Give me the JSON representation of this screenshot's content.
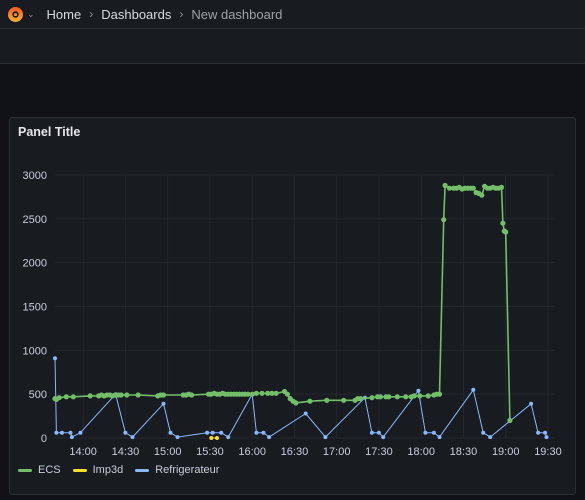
{
  "breadcrumb": {
    "home": "Home",
    "dashboards": "Dashboards",
    "current": "New dashboard"
  },
  "panel": {
    "title": "Panel Title"
  },
  "colors": {
    "ecs": "#73bf69",
    "imp3d": "#fade2a",
    "refrigerateur": "#8ab8ff"
  },
  "chart_data": {
    "type": "line",
    "title": "Panel Title",
    "xlabel": "",
    "ylabel": "",
    "ylim": [
      0,
      3000
    ],
    "xlim": [
      "13:40",
      "19:35"
    ],
    "y_ticks": [
      0,
      500,
      1000,
      1500,
      2000,
      2500,
      3000
    ],
    "x_ticks": [
      "14:00",
      "14:30",
      "15:00",
      "15:30",
      "16:00",
      "16:30",
      "17:00",
      "17:30",
      "18:00",
      "18:30",
      "19:00",
      "19:30"
    ],
    "grid": true,
    "legend_position": "bottom-left",
    "series": [
      {
        "name": "ECS",
        "points": [
          [
            "13:40",
            450
          ],
          [
            "13:41",
            440
          ],
          [
            "13:43",
            460
          ],
          [
            "13:48",
            470
          ],
          [
            "13:53",
            470
          ],
          [
            "14:05",
            480
          ],
          [
            "14:11",
            480
          ],
          [
            "14:13",
            490
          ],
          [
            "14:15",
            480
          ],
          [
            "14:17",
            490
          ],
          [
            "14:19",
            490
          ],
          [
            "14:21",
            480
          ],
          [
            "14:23",
            490
          ],
          [
            "14:25",
            490
          ],
          [
            "14:27",
            490
          ],
          [
            "14:31",
            490
          ],
          [
            "14:39",
            490
          ],
          [
            "14:53",
            480
          ],
          [
            "14:55",
            490
          ],
          [
            "14:57",
            490
          ],
          [
            "15:11",
            490
          ],
          [
            "15:13",
            490
          ],
          [
            "15:15",
            500
          ],
          [
            "15:17",
            490
          ],
          [
            "15:29",
            500
          ],
          [
            "15:31",
            500
          ],
          [
            "15:33",
            510
          ],
          [
            "15:35",
            500
          ],
          [
            "15:37",
            500
          ],
          [
            "15:39",
            510
          ],
          [
            "15:41",
            500
          ],
          [
            "15:43",
            500
          ],
          [
            "15:45",
            500
          ],
          [
            "15:47",
            500
          ],
          [
            "15:49",
            500
          ],
          [
            "15:51",
            500
          ],
          [
            "15:53",
            500
          ],
          [
            "15:55",
            500
          ],
          [
            "15:57",
            500
          ],
          [
            "16:00",
            500
          ],
          [
            "16:03",
            510
          ],
          [
            "16:07",
            510
          ],
          [
            "16:11",
            510
          ],
          [
            "16:14",
            510
          ],
          [
            "16:17",
            510
          ],
          [
            "16:23",
            530
          ],
          [
            "16:25",
            500
          ],
          [
            "16:27",
            450
          ],
          [
            "16:29",
            420
          ],
          [
            "16:31",
            400
          ],
          [
            "16:41",
            420
          ],
          [
            "16:53",
            430
          ],
          [
            "17:05",
            430
          ],
          [
            "17:13",
            430
          ],
          [
            "17:15",
            450
          ],
          [
            "17:17",
            450
          ],
          [
            "17:25",
            460
          ],
          [
            "17:29",
            470
          ],
          [
            "17:31",
            470
          ],
          [
            "17:35",
            470
          ],
          [
            "17:37",
            470
          ],
          [
            "17:43",
            470
          ],
          [
            "17:49",
            470
          ],
          [
            "17:53",
            470
          ],
          [
            "17:55",
            480
          ],
          [
            "17:59",
            480
          ],
          [
            "18:05",
            480
          ],
          [
            "18:09",
            490
          ],
          [
            "18:11",
            500
          ],
          [
            "18:13",
            500
          ],
          [
            "18:16",
            2490
          ],
          [
            "18:17",
            2880
          ],
          [
            "18:20",
            2850
          ],
          [
            "18:23",
            2850
          ],
          [
            "18:25",
            2850
          ],
          [
            "18:27",
            2860
          ],
          [
            "18:29",
            2840
          ],
          [
            "18:31",
            2850
          ],
          [
            "18:33",
            2850
          ],
          [
            "18:35",
            2850
          ],
          [
            "18:37",
            2850
          ],
          [
            "18:39",
            2800
          ],
          [
            "18:41",
            2790
          ],
          [
            "18:43",
            2770
          ],
          [
            "18:45",
            2870
          ],
          [
            "18:47",
            2850
          ],
          [
            "18:49",
            2850
          ],
          [
            "18:51",
            2860
          ],
          [
            "18:53",
            2850
          ],
          [
            "18:55",
            2850
          ],
          [
            "18:57",
            2860
          ],
          [
            "18:58",
            2450
          ],
          [
            "18:59",
            2360
          ],
          [
            "19:00",
            2350
          ],
          [
            "19:03",
            200
          ]
        ]
      },
      {
        "name": "Imp3d",
        "points": [
          [
            "15:31",
            0
          ],
          [
            "15:35",
            0
          ]
        ]
      },
      {
        "name": "Refrigerateur",
        "points": [
          [
            "13:40",
            910
          ],
          [
            "13:41",
            60
          ],
          [
            "13:45",
            60
          ],
          [
            "13:51",
            60
          ],
          [
            "13:52",
            10
          ],
          [
            "13:58",
            60
          ],
          [
            "14:23",
            500
          ],
          [
            "14:30",
            60
          ],
          [
            "14:35",
            10
          ],
          [
            "14:57",
            390
          ],
          [
            "15:02",
            60
          ],
          [
            "15:07",
            10
          ],
          [
            "15:28",
            60
          ],
          [
            "15:32",
            60
          ],
          [
            "15:38",
            60
          ],
          [
            "15:43",
            10
          ],
          [
            "16:00",
            500
          ],
          [
            "16:03",
            60
          ],
          [
            "16:08",
            60
          ],
          [
            "16:12",
            10
          ],
          [
            "16:38",
            280
          ],
          [
            "16:52",
            10
          ],
          [
            "17:20",
            460
          ],
          [
            "17:25",
            60
          ],
          [
            "17:30",
            60
          ],
          [
            "17:33",
            10
          ],
          [
            "17:58",
            540
          ],
          [
            "18:03",
            60
          ],
          [
            "18:09",
            60
          ],
          [
            "18:13",
            10
          ],
          [
            "18:37",
            550
          ],
          [
            "18:44",
            60
          ],
          [
            "18:49",
            10
          ],
          [
            "19:18",
            390
          ],
          [
            "19:23",
            60
          ],
          [
            "19:28",
            60
          ],
          [
            "19:29",
            10
          ]
        ]
      }
    ]
  }
}
